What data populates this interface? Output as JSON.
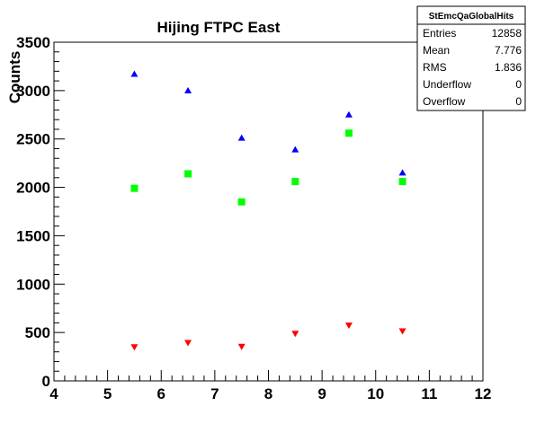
{
  "chart_data": {
    "type": "scatter",
    "title": "Hijing FTPC East",
    "xlabel": "",
    "ylabel": "Counts",
    "xlim": [
      4,
      12
    ],
    "ylim": [
      0,
      3500
    ],
    "x_ticks": [
      4,
      5,
      6,
      7,
      8,
      9,
      10,
      11,
      12
    ],
    "y_ticks": [
      0,
      500,
      1000,
      1500,
      2000,
      2500,
      3000,
      3500
    ],
    "grid": false,
    "series": [
      {
        "marker": "triangle-up",
        "color": "#0000ff",
        "x": [
          5.5,
          6.5,
          7.5,
          8.5,
          9.5,
          10.5
        ],
        "y": [
          3170,
          3000,
          2510,
          2390,
          2750,
          2150
        ]
      },
      {
        "marker": "square",
        "color": "#00ff00",
        "x": [
          5.5,
          6.5,
          7.5,
          8.5,
          9.5,
          10.5
        ],
        "y": [
          1990,
          2140,
          1850,
          2060,
          2560,
          2060
        ]
      },
      {
        "marker": "triangle-down",
        "color": "#ff0000",
        "x": [
          5.5,
          6.5,
          7.5,
          8.5,
          9.5,
          10.5
        ],
        "y": [
          350,
          395,
          355,
          490,
          575,
          515
        ]
      }
    ]
  },
  "stats_box": {
    "header": "StEmcQaGlobalHits",
    "rows": [
      {
        "label": "Entries",
        "value": "12858"
      },
      {
        "label": "Mean",
        "value": "7.776"
      },
      {
        "label": "RMS",
        "value": "1.836"
      },
      {
        "label": "Underflow",
        "value": "0"
      },
      {
        "label": "Overflow",
        "value": "0"
      }
    ]
  }
}
